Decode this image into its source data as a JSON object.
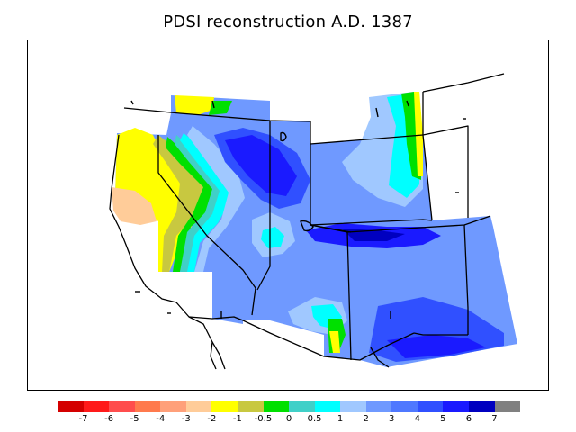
{
  "title": "PDSI reconstruction A.D. 1387",
  "legend": {
    "colors": [
      "#d40000",
      "#ff1a1a",
      "#ff4d4d",
      "#ff7a4d",
      "#ffa07a",
      "#ffcc99",
      "#ffff00",
      "#c8c840",
      "#00e000",
      "#40d0c8",
      "#00ffff",
      "#a0c8ff",
      "#6f99ff",
      "#4f78ff",
      "#3050ff",
      "#1a1aff",
      "#0000c0",
      "#808080"
    ],
    "ticks": [
      "-7",
      "-6",
      "-5",
      "-4",
      "-3",
      "-2",
      "-1",
      "-0.5",
      "0",
      "0.5",
      "1",
      "2",
      "3",
      "4",
      "5",
      "6",
      "7"
    ]
  },
  "palette": {
    "yellow": "#ffff00",
    "olive": "#c8c840",
    "green": "#00e000",
    "teal": "#40d0c8",
    "cyan": "#00ffff",
    "lightblue": "#a0c8ff",
    "medblue": "#6f99ff",
    "blue": "#4f78ff",
    "strongblue": "#3050ff",
    "deepblue": "#1a1aff",
    "navy": "#0000c0",
    "peach": "#ffcc99"
  }
}
